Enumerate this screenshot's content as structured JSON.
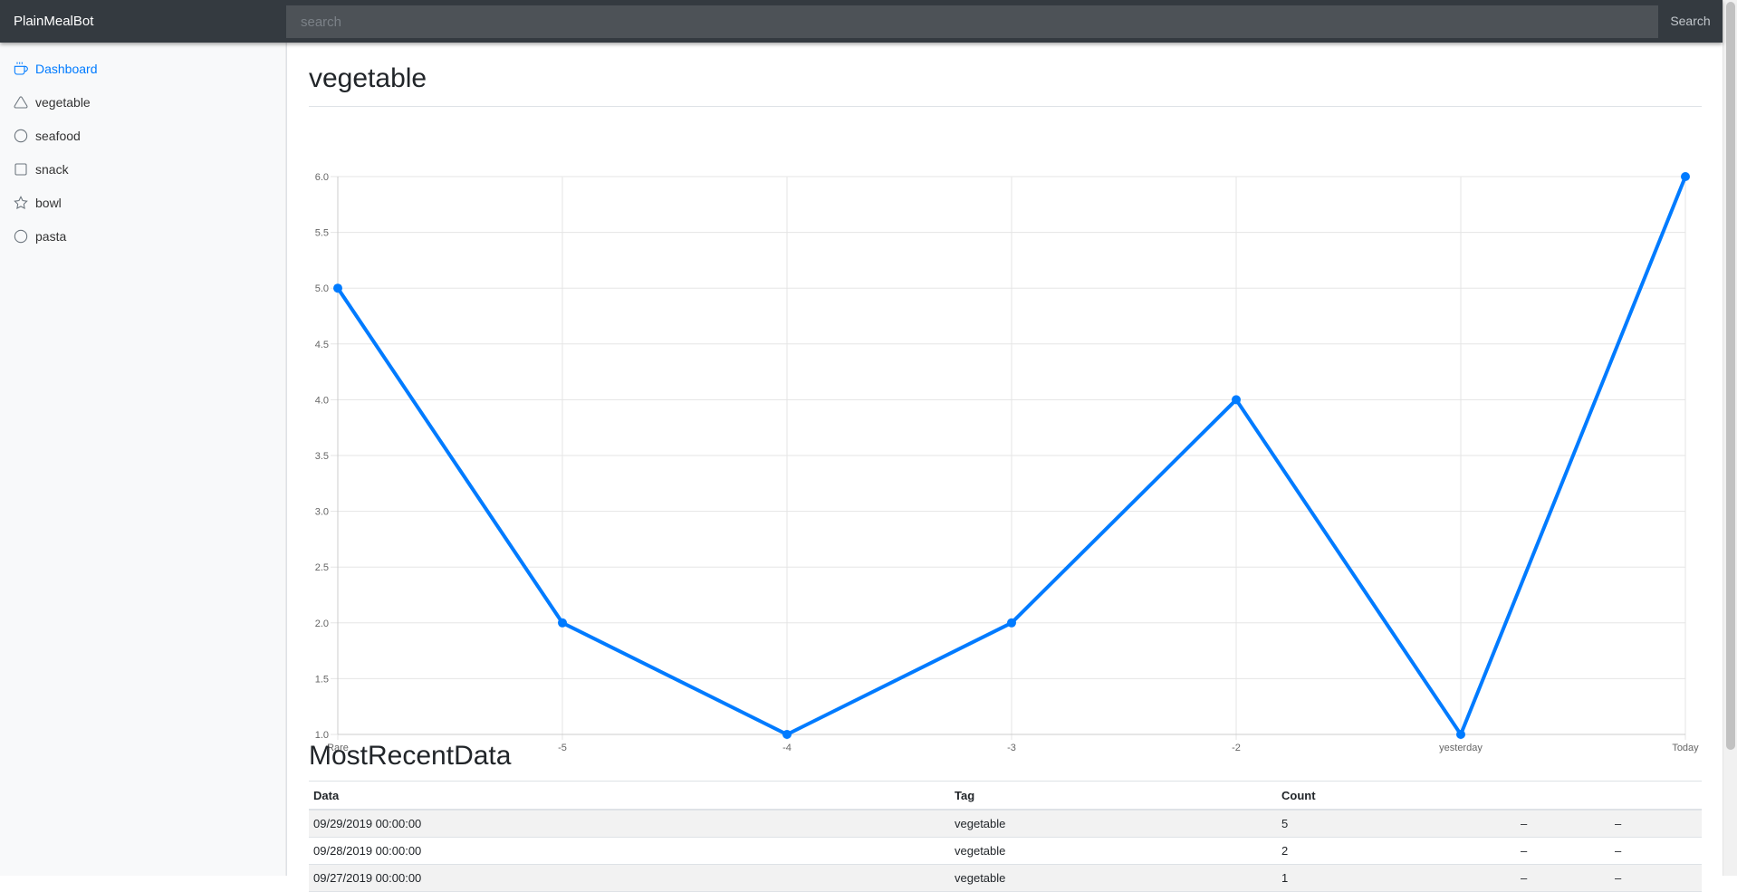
{
  "navbar": {
    "brand": "PlainMealBot",
    "search_placeholder": "search",
    "search_button": "Search"
  },
  "sidebar": {
    "items": [
      {
        "label": "Dashboard",
        "icon": "coffee-icon",
        "active": true
      },
      {
        "label": "vegetable",
        "icon": "triangle-icon",
        "active": false
      },
      {
        "label": "seafood",
        "icon": "circle-icon",
        "active": false
      },
      {
        "label": "snack",
        "icon": "square-icon",
        "active": false
      },
      {
        "label": "bowl",
        "icon": "star-icon",
        "active": false
      },
      {
        "label": "pasta",
        "icon": "circle-icon",
        "active": false
      }
    ]
  },
  "main": {
    "title": "vegetable",
    "table_title": "MostRecentData"
  },
  "chart_data": {
    "type": "line",
    "categories": [
      "Rare",
      "-5",
      "-4",
      "-3",
      "-2",
      "yesterday",
      "Today"
    ],
    "series": [
      {
        "values": [
          5,
          2,
          1,
          2,
          4,
          1,
          6
        ],
        "color": "#007bff"
      }
    ],
    "ylim": [
      1,
      6
    ],
    "yticks": [
      "1.0",
      "1.5",
      "2.0",
      "2.5",
      "3.0",
      "3.5",
      "4.0",
      "4.5",
      "5.0",
      "5.5",
      "6.0"
    ],
    "grid": true,
    "legend": "none"
  },
  "table": {
    "headers": [
      "Data",
      "Tag",
      "Count",
      "",
      ""
    ],
    "rows": [
      [
        "09/29/2019 00:00:00",
        "vegetable",
        "5",
        "–",
        "–"
      ],
      [
        "09/28/2019 00:00:00",
        "vegetable",
        "2",
        "–",
        "–"
      ],
      [
        "09/27/2019 00:00:00",
        "vegetable",
        "1",
        "–",
        "–"
      ]
    ]
  },
  "colors": {
    "navbar_bg": "#343a40",
    "accent": "#007bff",
    "sidebar_bg": "#f8f9fa"
  }
}
